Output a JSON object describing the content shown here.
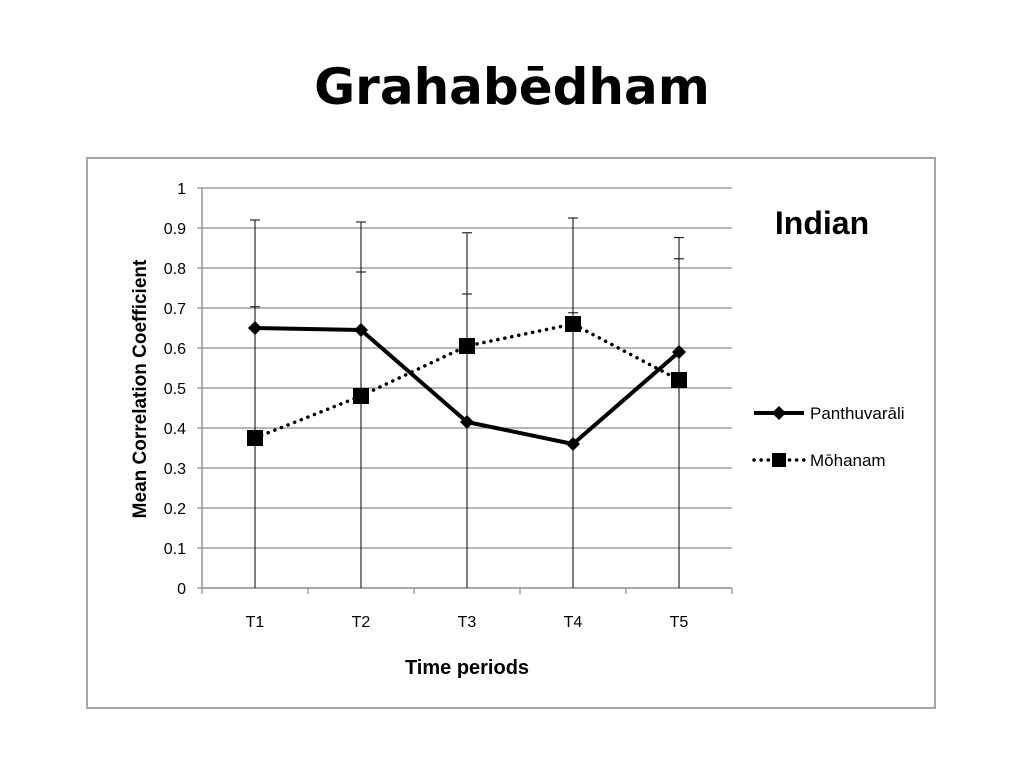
{
  "slide": {
    "title": "Grahabēdham"
  },
  "chart_data": {
    "type": "line",
    "title": "Indian",
    "xlabel": "Time periods",
    "ylabel": "Mean Correlation Coefficient",
    "categories": [
      "T1",
      "T2",
      "T3",
      "T4",
      "T5"
    ],
    "ylim": [
      0,
      1
    ],
    "yticks": [
      "0",
      "0.1",
      "0.2",
      "0.3",
      "0.4",
      "0.5",
      "0.6",
      "0.7",
      "0.8",
      "0.9",
      "1"
    ],
    "grid": true,
    "legend_position": "right",
    "series": [
      {
        "name": "Panthuvarāli",
        "line_style": "solid",
        "marker": "diamond",
        "color": "#000000",
        "values": [
          0.65,
          0.645,
          0.415,
          0.36,
          0.59
        ],
        "error_upper": [
          0.92,
          0.915,
          0.888,
          0.925,
          0.876
        ],
        "error_lower": [
          0.0,
          0.0,
          0.0,
          0.0,
          0.0
        ]
      },
      {
        "name": "Mōhanam",
        "line_style": "dotted",
        "marker": "square",
        "color": "#000000",
        "values": [
          0.375,
          0.48,
          0.605,
          0.66,
          0.52
        ],
        "error_upper": [
          0.703,
          0.79,
          0.735,
          0.688,
          0.823
        ],
        "error_lower": [
          0.0,
          0.0,
          0.0,
          0.0,
          0.0
        ]
      }
    ]
  }
}
